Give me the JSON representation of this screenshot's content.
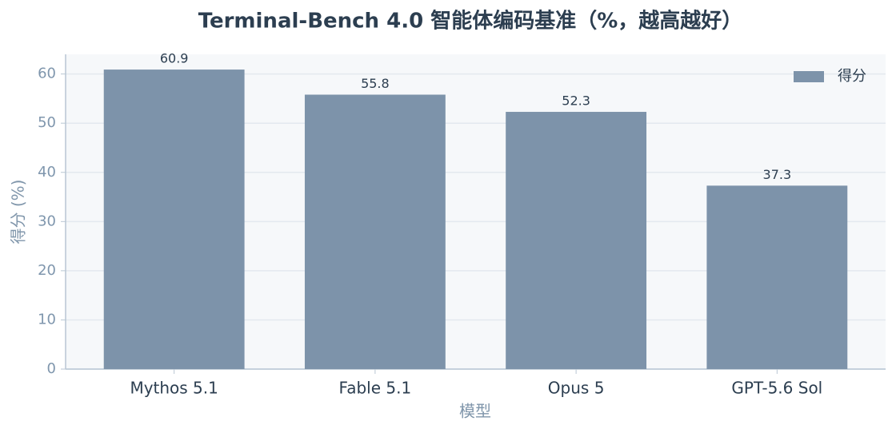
{
  "chart_data": {
    "type": "bar",
    "title": "Terminal-Bench 4.0 智能体编码基准（%，越高越好）",
    "x_label": "模型",
    "y_label": "得分 (%)",
    "categories": [
      "Mythos 5.1",
      "Fable 5.1",
      "Opus 5",
      "GPT-5.6 Sol"
    ],
    "series": [
      {
        "name": "得分",
        "color": "#7d93aa",
        "values": [
          60.9,
          55.8,
          52.3,
          37.3
        ]
      }
    ],
    "ylim": [
      0,
      64
    ],
    "yticks": [
      0,
      10,
      20,
      30,
      40,
      50,
      60
    ],
    "grid": true,
    "legend": "upper right"
  }
}
